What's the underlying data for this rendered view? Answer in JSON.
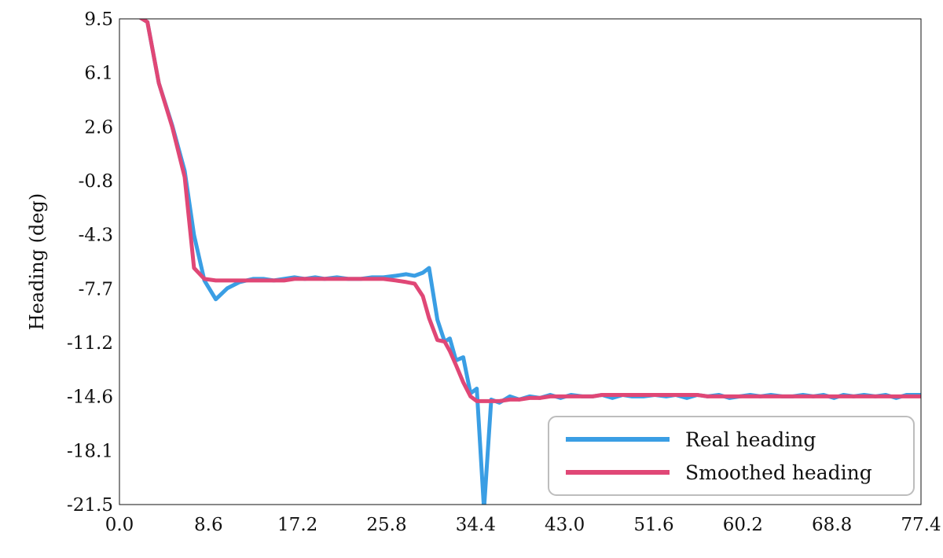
{
  "chart_data": {
    "type": "line",
    "title": "",
    "xlabel": "",
    "ylabel": "Heading (deg)",
    "xlim": [
      0.0,
      77.4
    ],
    "ylim": [
      -21.5,
      9.5
    ],
    "x_ticks": [
      "0.0",
      "8.6",
      "17.2",
      "25.8",
      "34.4",
      "43.0",
      "51.6",
      "60.2",
      "68.8",
      "77.4"
    ],
    "y_ticks": [
      "9.5",
      "6.1",
      "2.6",
      "-0.8",
      "-4.3",
      "-7.7",
      "-11.2",
      "-14.6",
      "-18.1",
      "-21.5"
    ],
    "grid": false,
    "legend_position": "bottom-right",
    "series": [
      {
        "name": "Real heading",
        "color": "#3a9ee4",
        "x": [
          0.0,
          1.7,
          2.7,
          3.8,
          5.1,
          6.3,
          7.2,
          8.2,
          9.3,
          10.4,
          11.6,
          12.9,
          13.9,
          14.9,
          15.9,
          16.9,
          17.9,
          18.9,
          19.8,
          21.0,
          22.1,
          23.3,
          24.4,
          25.5,
          26.7,
          27.7,
          28.5,
          29.3,
          29.9,
          30.7,
          31.4,
          31.9,
          32.5,
          33.2,
          33.9,
          34.5,
          35.2,
          35.9,
          36.7,
          37.7,
          38.6,
          39.6,
          40.6,
          41.6,
          42.6,
          43.6,
          44.7,
          45.7,
          46.6,
          47.6,
          48.6,
          49.5,
          50.6,
          51.7,
          52.8,
          53.7,
          54.8,
          55.8,
          56.8,
          57.9,
          58.9,
          59.9,
          60.9,
          61.9,
          62.9,
          64.0,
          65.0,
          66.0,
          67.0,
          68.0,
          69.0,
          69.9,
          70.9,
          71.9,
          73.0,
          74.0,
          75.0,
          76.0,
          77.4
        ],
        "y": [
          9.7,
          9.7,
          9.3,
          5.4,
          2.7,
          -0.2,
          -4.3,
          -7.2,
          -8.4,
          -7.7,
          -7.3,
          -7.1,
          -7.1,
          -7.2,
          -7.1,
          -7.0,
          -7.1,
          -7.0,
          -7.1,
          -7.0,
          -7.1,
          -7.1,
          -7.0,
          -7.0,
          -6.9,
          -6.8,
          -6.9,
          -6.7,
          -6.4,
          -9.7,
          -11.1,
          -10.9,
          -12.3,
          -12.1,
          -14.4,
          -14.1,
          -21.8,
          -14.8,
          -15.0,
          -14.6,
          -14.8,
          -14.6,
          -14.7,
          -14.5,
          -14.7,
          -14.5,
          -14.6,
          -14.6,
          -14.5,
          -14.7,
          -14.5,
          -14.6,
          -14.6,
          -14.5,
          -14.6,
          -14.5,
          -14.7,
          -14.5,
          -14.6,
          -14.5,
          -14.7,
          -14.6,
          -14.5,
          -14.6,
          -14.5,
          -14.6,
          -14.6,
          -14.5,
          -14.6,
          -14.5,
          -14.7,
          -14.5,
          -14.6,
          -14.5,
          -14.6,
          -14.5,
          -14.7,
          -14.5,
          -14.5
        ]
      },
      {
        "name": "Smoothed heading",
        "color": "#e04776",
        "x": [
          0.0,
          1.7,
          2.7,
          3.8,
          5.1,
          6.3,
          7.2,
          8.2,
          9.3,
          10.4,
          11.6,
          12.9,
          13.9,
          14.9,
          15.9,
          16.9,
          17.9,
          18.9,
          19.8,
          21.0,
          22.1,
          23.3,
          24.4,
          25.5,
          26.7,
          27.7,
          28.5,
          29.3,
          29.9,
          30.7,
          31.4,
          31.9,
          32.5,
          33.2,
          33.9,
          34.5,
          35.2,
          35.9,
          36.7,
          37.7,
          38.6,
          39.6,
          40.6,
          41.6,
          42.6,
          43.6,
          44.7,
          45.7,
          46.6,
          47.6,
          48.6,
          49.5,
          50.6,
          51.7,
          52.8,
          53.7,
          54.8,
          55.8,
          56.8,
          57.9,
          58.9,
          59.9,
          60.9,
          61.9,
          62.9,
          64.0,
          65.0,
          66.0,
          67.0,
          68.0,
          69.0,
          69.9,
          70.9,
          71.9,
          73.0,
          74.0,
          75.0,
          76.0,
          77.4
        ],
        "y": [
          9.7,
          9.7,
          9.3,
          5.4,
          2.6,
          -0.6,
          -6.4,
          -7.1,
          -7.2,
          -7.2,
          -7.2,
          -7.2,
          -7.2,
          -7.2,
          -7.2,
          -7.1,
          -7.1,
          -7.1,
          -7.1,
          -7.1,
          -7.1,
          -7.1,
          -7.1,
          -7.1,
          -7.2,
          -7.3,
          -7.4,
          -8.2,
          -9.6,
          -11.0,
          -11.1,
          -11.7,
          -12.6,
          -13.7,
          -14.6,
          -14.9,
          -14.9,
          -14.9,
          -14.9,
          -14.8,
          -14.8,
          -14.7,
          -14.7,
          -14.6,
          -14.6,
          -14.6,
          -14.6,
          -14.6,
          -14.5,
          -14.5,
          -14.5,
          -14.5,
          -14.5,
          -14.5,
          -14.5,
          -14.5,
          -14.5,
          -14.5,
          -14.6,
          -14.6,
          -14.6,
          -14.6,
          -14.6,
          -14.6,
          -14.6,
          -14.6,
          -14.6,
          -14.6,
          -14.6,
          -14.6,
          -14.6,
          -14.6,
          -14.6,
          -14.6,
          -14.6,
          -14.6,
          -14.6,
          -14.6,
          -14.6
        ]
      }
    ]
  }
}
